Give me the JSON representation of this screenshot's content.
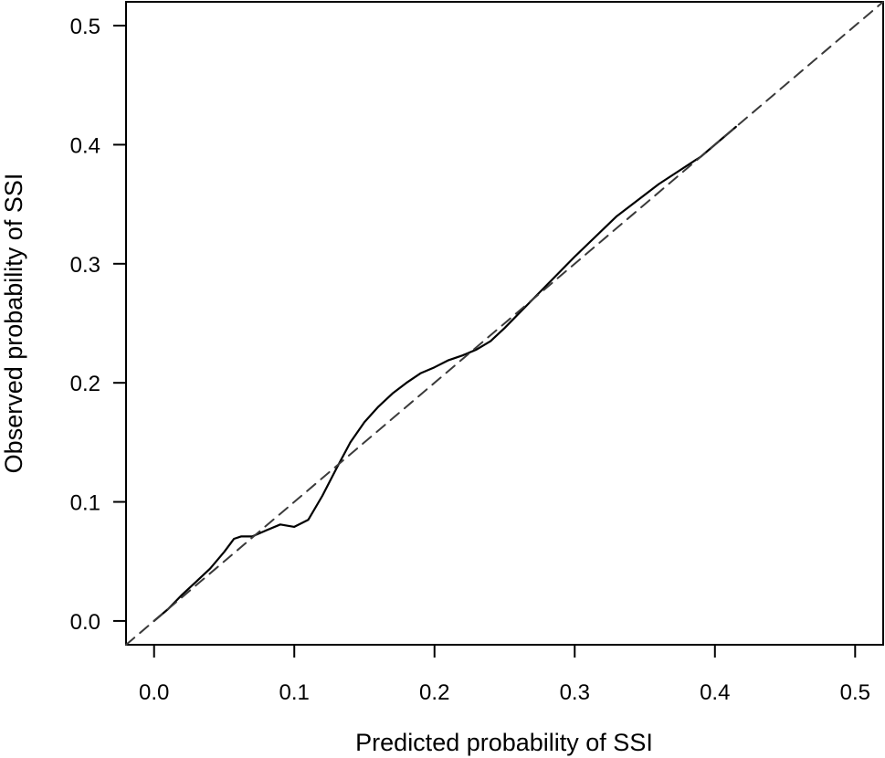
{
  "chart_data": {
    "type": "line",
    "title": "",
    "xlabel": "Predicted probability of SSI",
    "ylabel": "Observed probability of SSI",
    "xlim": [
      -0.02,
      0.52
    ],
    "ylim": [
      -0.02,
      0.52
    ],
    "x_ticks": [
      "0.0",
      "0.1",
      "0.2",
      "0.3",
      "0.4",
      "0.5"
    ],
    "y_ticks": [
      "0.0",
      "0.1",
      "0.2",
      "0.3",
      "0.4",
      "0.5"
    ],
    "grid": false,
    "legend": "none",
    "series": [
      {
        "style": "solid",
        "color": "#000000",
        "x": [
          0.0,
          0.01,
          0.02,
          0.03,
          0.04,
          0.05,
          0.057,
          0.062,
          0.07,
          0.08,
          0.09,
          0.1,
          0.11,
          0.12,
          0.13,
          0.14,
          0.15,
          0.16,
          0.17,
          0.18,
          0.19,
          0.2,
          0.21,
          0.22,
          0.23,
          0.24,
          0.25,
          0.27,
          0.3,
          0.33,
          0.36,
          0.39,
          0.415
        ],
        "y": [
          0.0,
          0.01,
          0.022,
          0.033,
          0.044,
          0.058,
          0.069,
          0.071,
          0.071,
          0.076,
          0.081,
          0.079,
          0.085,
          0.105,
          0.128,
          0.15,
          0.167,
          0.18,
          0.191,
          0.2,
          0.208,
          0.213,
          0.219,
          0.223,
          0.228,
          0.235,
          0.246,
          0.27,
          0.306,
          0.34,
          0.367,
          0.39,
          0.415
        ]
      },
      {
        "style": "dashed",
        "color": "#3a3a3a",
        "x": [
          -0.02,
          0.52
        ],
        "y": [
          -0.02,
          0.52
        ]
      }
    ]
  }
}
